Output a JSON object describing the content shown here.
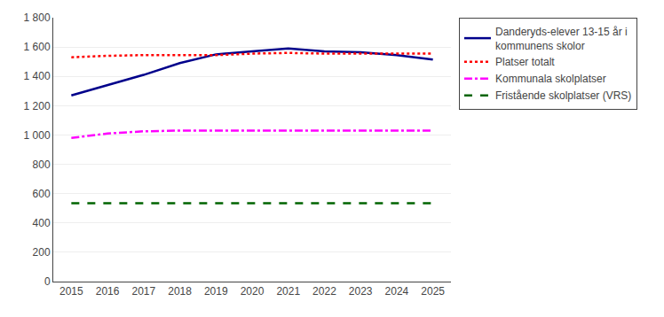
{
  "chart_data": {
    "type": "line",
    "x": [
      2015,
      2016,
      2017,
      2018,
      2019,
      2020,
      2021,
      2022,
      2023,
      2024,
      2025
    ],
    "series": [
      {
        "name": "Danderyds-elever 13-15 år i\nkommunens skolor",
        "color": "#00008B",
        "line_style": "solid",
        "values": [
          1270,
          1340,
          1410,
          1490,
          1550,
          1570,
          1590,
          1570,
          1565,
          1545,
          1515
        ]
      },
      {
        "name": "Platser totalt",
        "color": "#FF0000",
        "line_style": "dotted",
        "values": [
          1530,
          1540,
          1545,
          1545,
          1545,
          1555,
          1560,
          1555,
          1555,
          1555,
          1555
        ]
      },
      {
        "name": "Kommunala skolplatser",
        "color": "#FF00FF",
        "line_style": "dashdot",
        "values": [
          980,
          1010,
          1025,
          1030,
          1030,
          1030,
          1030,
          1030,
          1030,
          1030,
          1030
        ]
      },
      {
        "name": "Fristående skolplatser (VRS)",
        "color": "#006400",
        "line_style": "dashed",
        "values": [
          535,
          535,
          535,
          535,
          535,
          535,
          535,
          535,
          535,
          535,
          535
        ]
      }
    ],
    "xlim": [
      2014.5,
      2025.5
    ],
    "xticks": [
      2015,
      2016,
      2017,
      2018,
      2019,
      2020,
      2021,
      2022,
      2023,
      2024,
      2025
    ],
    "ylim": [
      0,
      1800
    ],
    "yticks": [
      0,
      200,
      400,
      600,
      800,
      {
        "value": 1000,
        "label": "1 000"
      },
      {
        "value": 1200,
        "label": "1 200"
      },
      {
        "value": 1400,
        "label": "1 400"
      },
      {
        "value": 1600,
        "label": "1 600"
      },
      {
        "value": 1800,
        "label": "1 800"
      }
    ],
    "grid": true,
    "legend": "right"
  }
}
